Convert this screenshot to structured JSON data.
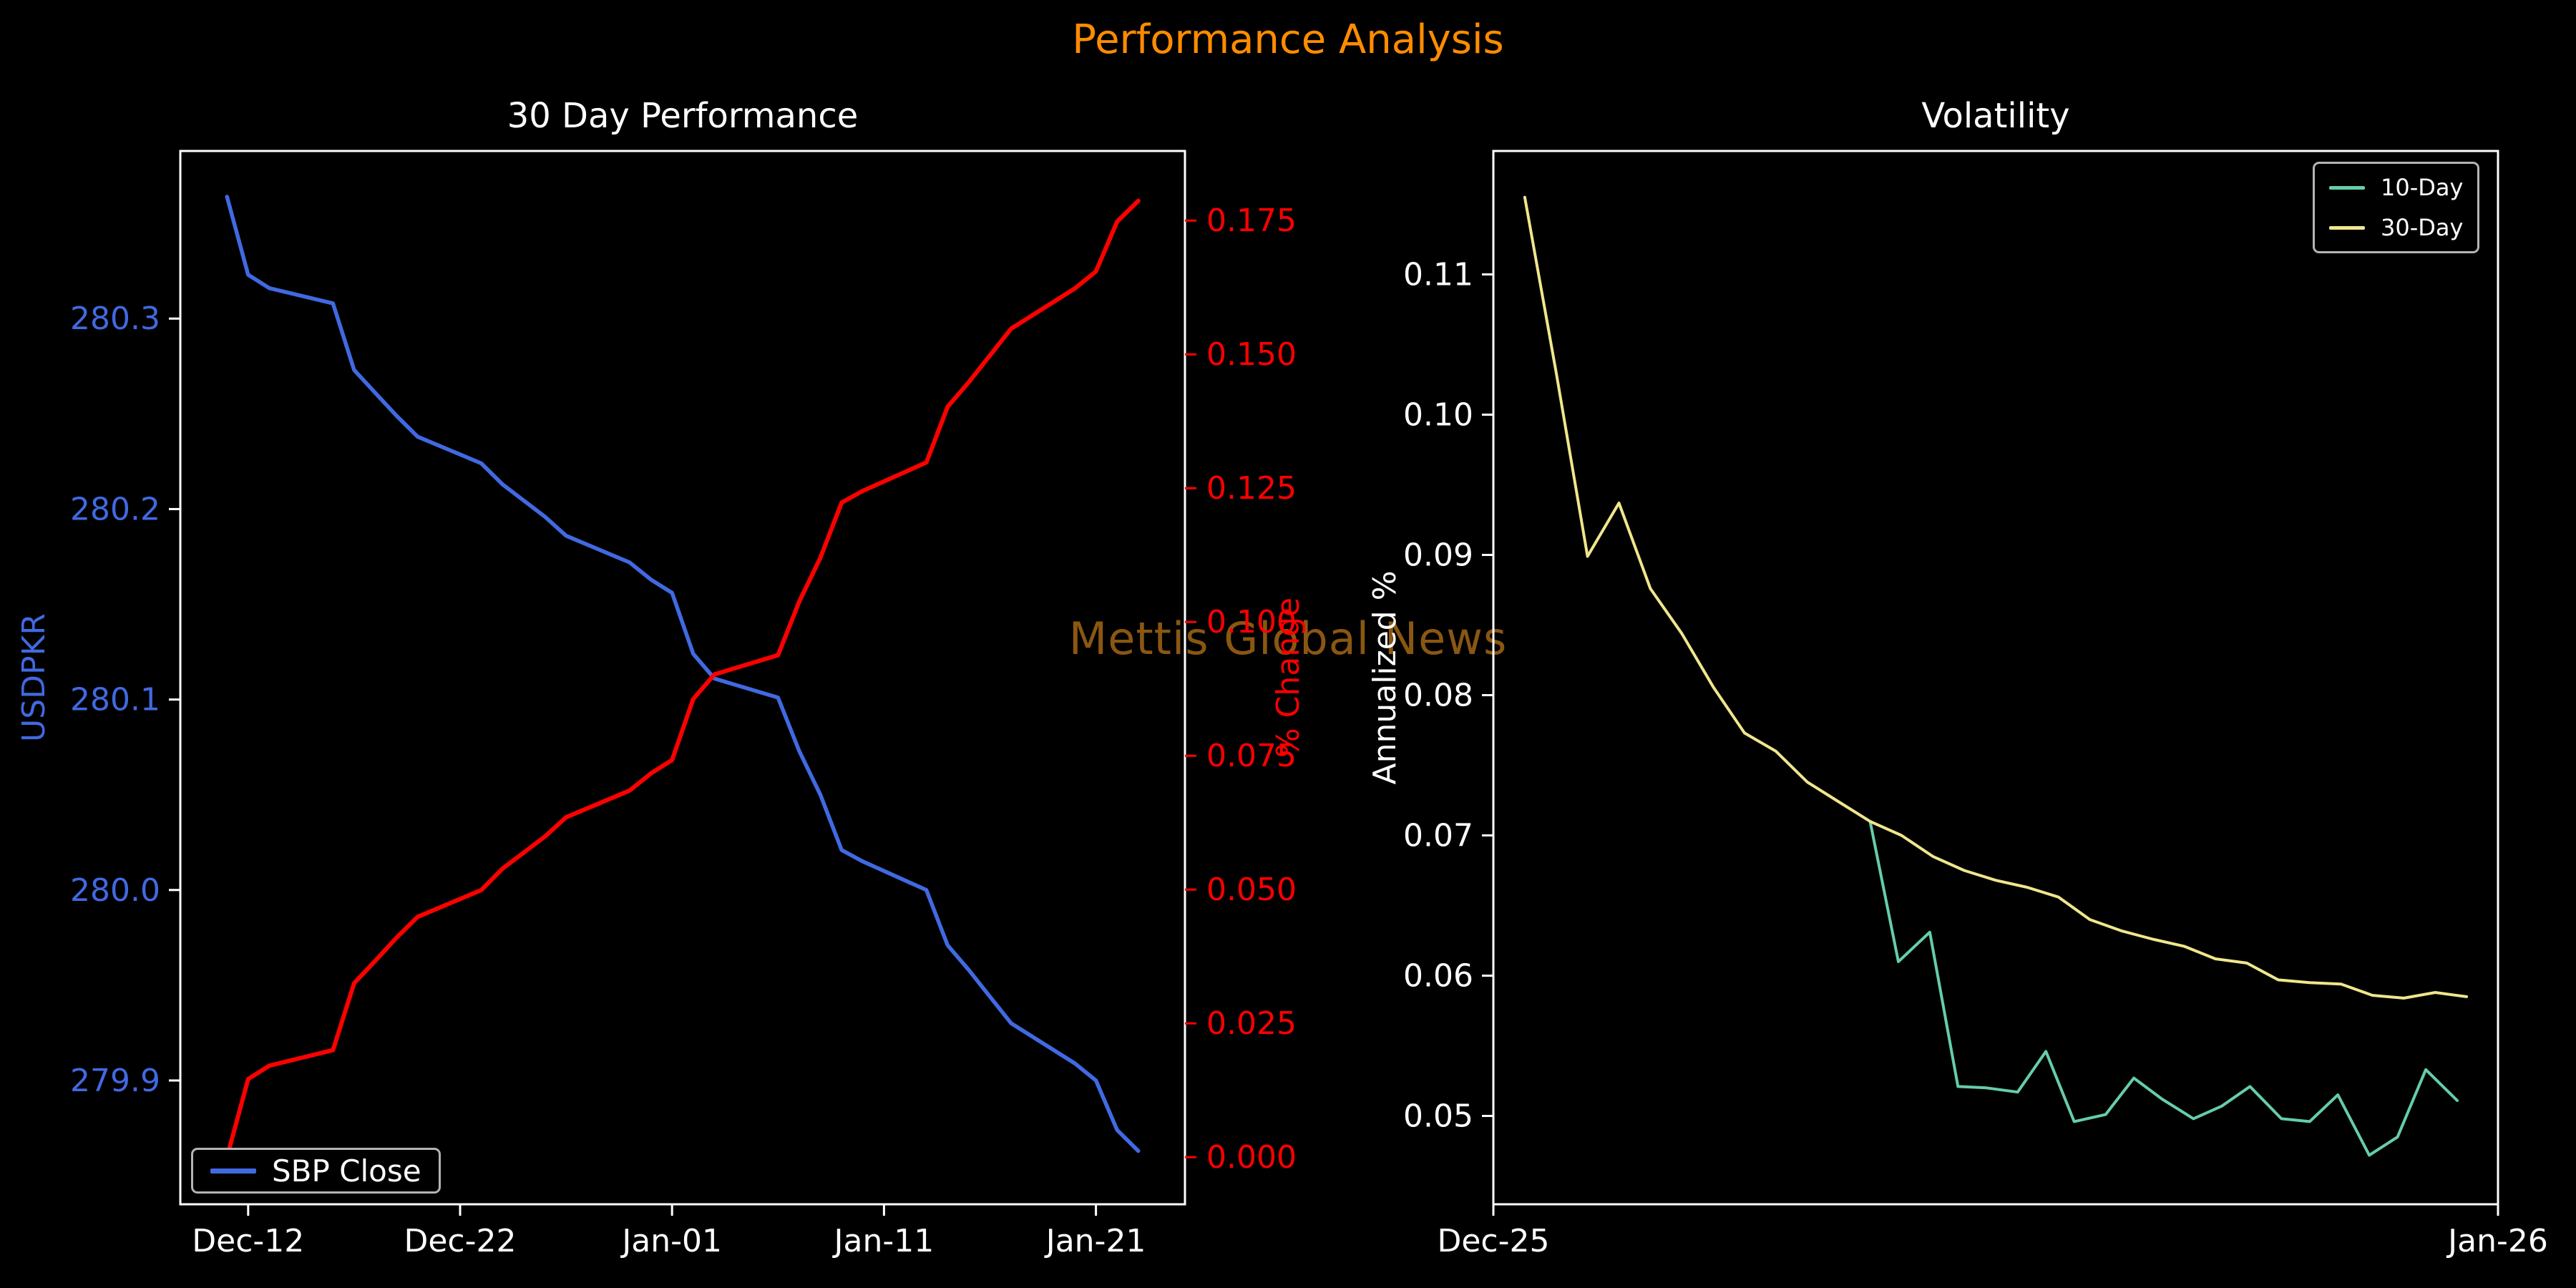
{
  "figure": {
    "title": "Performance Analysis",
    "title_color": "#ff8c00",
    "watermark": "Mettis Global News",
    "watermark_color": "#8a5712",
    "background": "#000000",
    "spine_color": "#ffffff"
  },
  "chart_data": [
    {
      "id": "performance",
      "type": "line",
      "title": "30 Day Performance",
      "x_range": [
        -2.2,
        45.2
      ],
      "x_ticks": [
        {
          "label": "Dec-12",
          "day": 1
        },
        {
          "label": "Dec-22",
          "day": 11
        },
        {
          "label": "Jan-01",
          "day": 21
        },
        {
          "label": "Jan-11",
          "day": 31
        },
        {
          "label": "Jan-21",
          "day": 41
        }
      ],
      "axes": {
        "left": {
          "label": "USDPKR",
          "color": "#4169e1",
          "tick_color": "#ffffff",
          "range": [
            279.835,
            280.388
          ],
          "ticks": [
            {
              "label": "279.9",
              "value": 279.9
            },
            {
              "label": "280.0",
              "value": 280.0
            },
            {
              "label": "280.1",
              "value": 280.1
            },
            {
              "label": "280.2",
              "value": 280.2
            },
            {
              "label": "280.3",
              "value": 280.3
            }
          ]
        },
        "right": {
          "label": "% Change",
          "color": "#ff0000",
          "tick_color": "#ff0000",
          "range": [
            -0.0088,
            0.188
          ],
          "ticks": [
            {
              "label": "0.000",
              "value": 0.0
            },
            {
              "label": "0.025",
              "value": 0.025
            },
            {
              "label": "0.050",
              "value": 0.05
            },
            {
              "label": "0.075",
              "value": 0.075
            },
            {
              "label": "0.100",
              "value": 0.1
            },
            {
              "label": "0.125",
              "value": 0.125
            },
            {
              "label": "0.150",
              "value": 0.15
            },
            {
              "label": "0.175",
              "value": 0.175
            }
          ]
        }
      },
      "legend": {
        "position": "bottom-left",
        "items": [
          {
            "label": "SBP Close",
            "color": "#4169e1"
          }
        ]
      },
      "series": [
        {
          "name": "SBP Close",
          "color": "#4169e1",
          "axis": "left",
          "width": 5.5,
          "days": [
            0,
            1,
            2,
            5,
            6,
            7,
            8,
            9,
            12,
            13,
            15,
            16,
            19,
            20,
            21,
            22,
            23,
            26,
            27,
            28,
            29,
            30,
            33,
            34,
            35,
            36,
            37,
            40,
            41,
            42,
            43
          ],
          "values": [
            280.364,
            280.323,
            280.316,
            280.308,
            280.273,
            280.261,
            280.249,
            280.238,
            280.224,
            280.213,
            280.196,
            280.186,
            280.172,
            280.163,
            280.156,
            280.124,
            280.111,
            280.101,
            280.073,
            280.05,
            280.021,
            280.015,
            280.0,
            279.971,
            279.958,
            279.944,
            279.93,
            279.909,
            279.9,
            279.874,
            279.863
          ]
        },
        {
          "name": "% Change",
          "color": "#ff0000",
          "axis": "right",
          "width": 6,
          "days": [
            0,
            1,
            2,
            5,
            6,
            7,
            8,
            9,
            12,
            13,
            15,
            16,
            19,
            20,
            21,
            22,
            23,
            26,
            27,
            28,
            29,
            30,
            33,
            34,
            35,
            36,
            37,
            40,
            41,
            42,
            43
          ],
          "values": [
            0.0,
            0.0146,
            0.0171,
            0.02,
            0.0325,
            0.0367,
            0.041,
            0.0449,
            0.0499,
            0.0539,
            0.0599,
            0.0635,
            0.0685,
            0.0717,
            0.0742,
            0.0856,
            0.0902,
            0.0938,
            0.1038,
            0.112,
            0.1223,
            0.1245,
            0.1298,
            0.1402,
            0.1448,
            0.1498,
            0.1548,
            0.1623,
            0.1655,
            0.1748,
            0.1787
          ]
        }
      ]
    },
    {
      "id": "volatility",
      "type": "line",
      "title": "Volatility",
      "x_range": [
        0,
        32
      ],
      "x_ticks": [
        {
          "label": "Dec-25",
          "day": 0
        },
        {
          "label": "Jan-26",
          "day": 32
        }
      ],
      "axes": {
        "left": {
          "label": "Annualized %",
          "color": "#ffffff",
          "tick_color": "#ffffff",
          "range": [
            0.0437,
            0.1188
          ],
          "ticks": [
            {
              "label": "0.05",
              "value": 0.05
            },
            {
              "label": "0.06",
              "value": 0.06
            },
            {
              "label": "0.07",
              "value": 0.07
            },
            {
              "label": "0.08",
              "value": 0.08
            },
            {
              "label": "0.09",
              "value": 0.09
            },
            {
              "label": "0.10",
              "value": 0.1
            },
            {
              "label": "0.11",
              "value": 0.11
            }
          ]
        }
      },
      "legend": {
        "position": "top-right",
        "items": [
          {
            "label": "10-Day",
            "color": "#66cdaa"
          },
          {
            "label": "30-Day",
            "color": "#f0e68c"
          }
        ]
      },
      "series": [
        {
          "name": "10-Day",
          "color": "#66cdaa",
          "axis": "left",
          "width": 4,
          "days": [
            12,
            12.9,
            13.9,
            14.8,
            15.7,
            16.7,
            17.6,
            18.5,
            19.5,
            20.4,
            21.3,
            22.3,
            23.2,
            24.1,
            25.1,
            26,
            26.9,
            27.9,
            28.8,
            29.7,
            30.7
          ],
          "values": [
            0.071,
            0.061,
            0.0631,
            0.0521,
            0.052,
            0.0517,
            0.0546,
            0.0496,
            0.0501,
            0.0527,
            0.0512,
            0.0498,
            0.0507,
            0.0521,
            0.0498,
            0.0496,
            0.0515,
            0.0472,
            0.0485,
            0.0533,
            0.0511
          ]
        },
        {
          "name": "30-Day",
          "color": "#f0e68c",
          "axis": "left",
          "width": 4,
          "days": [
            1,
            2,
            3,
            4,
            5,
            6,
            7,
            8,
            9,
            10,
            11,
            12,
            13,
            14,
            15,
            16,
            17,
            18,
            19,
            20,
            21,
            22,
            23,
            24,
            25,
            26,
            27,
            28,
            29,
            30,
            31
          ],
          "values": [
            0.1155,
            0.103,
            0.0899,
            0.0937,
            0.0876,
            0.0844,
            0.0806,
            0.0773,
            0.076,
            0.0738,
            0.0724,
            0.071,
            0.07,
            0.0685,
            0.0675,
            0.0668,
            0.0663,
            0.0656,
            0.064,
            0.0632,
            0.0626,
            0.0621,
            0.0612,
            0.0609,
            0.0597,
            0.0595,
            0.0594,
            0.0586,
            0.0584,
            0.0588,
            0.0585
          ]
        }
      ]
    }
  ]
}
